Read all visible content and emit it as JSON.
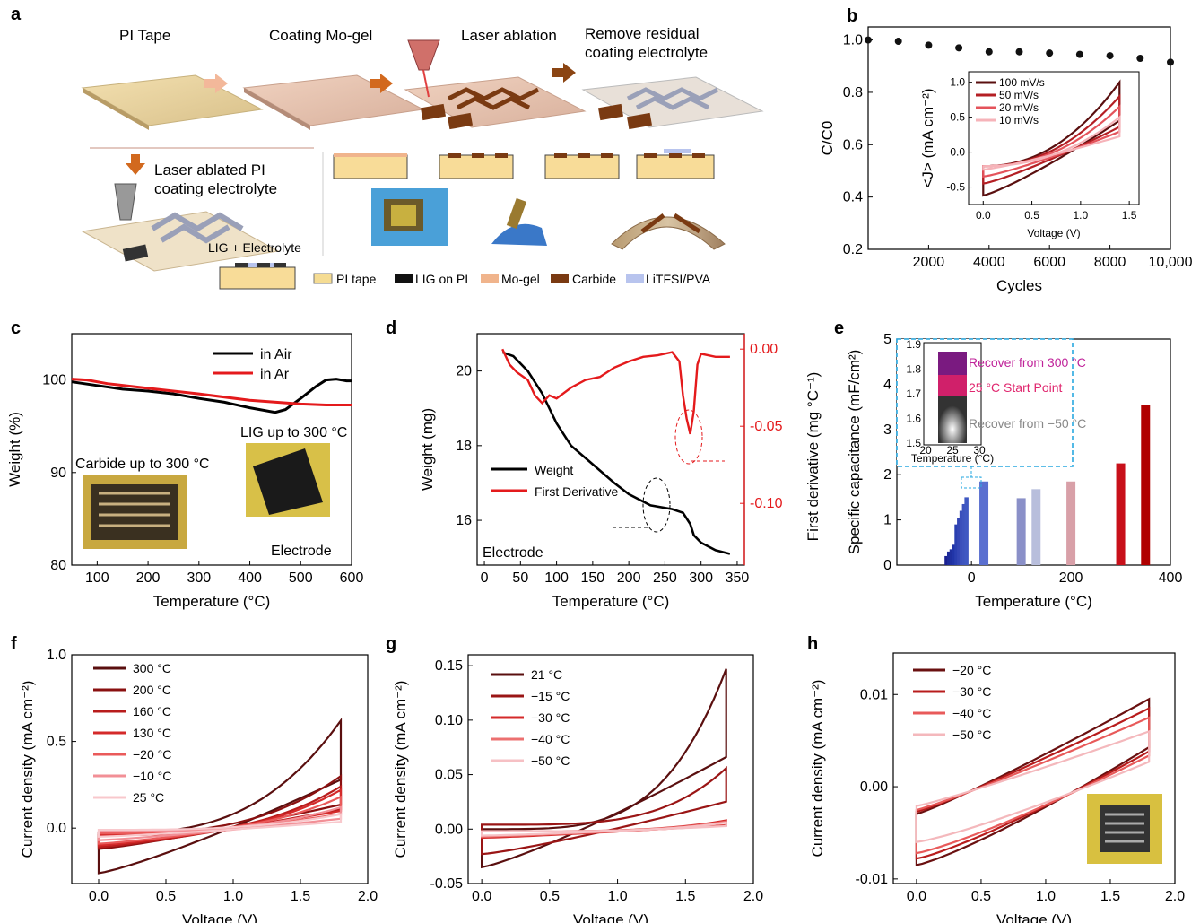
{
  "panel_a": {
    "label": "a",
    "steps": [
      "PI Tape",
      "Coating Mo-gel",
      "Laser ablation",
      "Remove residual coating electrolyte"
    ],
    "laser_ablated_note": "Laser ablated PI coating electrolyte",
    "lig_electrolyte": "LIG + Electrolyte",
    "legend": [
      {
        "label": "PI tape",
        "color": "#f5dc93"
      },
      {
        "label": "LIG on PI",
        "color": "#111111"
      },
      {
        "label": "Mo-gel",
        "color": "#f0b48c"
      },
      {
        "label": "Carbide",
        "color": "#7a3a12"
      },
      {
        "label": "LiTFSI/PVA",
        "color": "#b8c4ee"
      }
    ]
  },
  "chart_data": [
    {
      "panel": "b",
      "type": "scatter",
      "ylabel": "C/C0",
      "xlabel": "Cycles",
      "xlim": [
        0,
        10000
      ],
      "ylim": [
        0.2,
        1.0
      ],
      "xticks": [
        "2000",
        "4000",
        "6000",
        "8000",
        "10,000"
      ],
      "yticks": [
        "0.2",
        "0.4",
        "0.6",
        "0.8",
        "1.0"
      ],
      "x": [
        0,
        1000,
        2000,
        3000,
        4000,
        5000,
        6000,
        7000,
        8000,
        9000,
        10000
      ],
      "y": [
        1.0,
        0.995,
        0.98,
        0.97,
        0.955,
        0.955,
        0.95,
        0.945,
        0.94,
        0.93,
        0.915
      ],
      "inset": {
        "type": "line",
        "xlabel": "Voltage (V)",
        "ylabel": "<J> (mA cm⁻²)",
        "xticks": [
          "0.0",
          "0.5",
          "1.0",
          "1.5"
        ],
        "yticks": [
          "-0.5",
          "0.0",
          "0.5",
          "1.0"
        ],
        "series": [
          {
            "name": "100 mV/s",
            "color": "#5a0f0f",
            "peak": 1.0,
            "low": -0.62
          },
          {
            "name": "50 mV/s",
            "color": "#b41f24",
            "peak": 0.8,
            "low": -0.45
          },
          {
            "name": "20 mV/s",
            "color": "#e4535b",
            "peak": 0.65,
            "low": -0.35
          },
          {
            "name": "10 mV/s",
            "color": "#f6b3b9",
            "peak": 0.5,
            "low": -0.25
          }
        ]
      }
    },
    {
      "panel": "c",
      "type": "line",
      "xlabel": "Temperature (°C)",
      "ylabel": "Weight (%)",
      "xlim": [
        50,
        600
      ],
      "ylim": [
        80,
        105
      ],
      "xticks": [
        "100",
        "200",
        "300",
        "400",
        "500",
        "600"
      ],
      "yticks": [
        "80",
        "90",
        "100"
      ],
      "series": [
        {
          "name": "in Air",
          "color": "#000000",
          "x": [
            50,
            100,
            150,
            200,
            250,
            300,
            350,
            400,
            450,
            470,
            500,
            530,
            550,
            570,
            590,
            600
          ],
          "y": [
            99.8,
            99.4,
            99.0,
            98.8,
            98.5,
            98.0,
            97.6,
            97.0,
            96.5,
            96.8,
            98.0,
            99.3,
            100.0,
            100.1,
            99.9,
            99.9
          ]
        },
        {
          "name": "in Ar",
          "color": "#e41a1c",
          "x": [
            50,
            80,
            120,
            200,
            300,
            400,
            500,
            550,
            600
          ],
          "y": [
            100.1,
            100.0,
            99.6,
            99.1,
            98.5,
            97.8,
            97.4,
            97.3,
            97.3
          ]
        }
      ],
      "annotations": [
        "Carbide up to 300 °C",
        "LIG up to 300 °C",
        "Electrode"
      ]
    },
    {
      "panel": "d",
      "type": "line",
      "xlabel": "Temperature (°C)",
      "ylabel": "Weight (mg)",
      "ylabel_right": "First derivative (mg °C⁻¹)",
      "xlim": [
        -10,
        360
      ],
      "ylim": [
        14.8,
        21.0
      ],
      "ylim_right": [
        -0.14,
        0.01
      ],
      "xticks": [
        "0",
        "50",
        "100",
        "150",
        "200",
        "250",
        "300",
        "350"
      ],
      "yticks": [
        "16",
        "18",
        "20"
      ],
      "yticks_right": [
        "0.00",
        "-0.05",
        "-0.10"
      ],
      "series": [
        {
          "name": "Weight",
          "color": "#000000",
          "x": [
            25,
            40,
            60,
            80,
            100,
            120,
            150,
            180,
            200,
            230,
            260,
            275,
            285,
            290,
            300,
            320,
            340
          ],
          "y": [
            20.5,
            20.4,
            20.0,
            19.4,
            18.6,
            18.0,
            17.5,
            17.0,
            16.7,
            16.4,
            16.3,
            16.2,
            15.9,
            15.6,
            15.4,
            15.2,
            15.1
          ]
        },
        {
          "name": "First Derivative",
          "color": "#e41a1c",
          "x": [
            25,
            35,
            45,
            60,
            70,
            80,
            90,
            100,
            120,
            140,
            160,
            180,
            200,
            220,
            240,
            260,
            270,
            275,
            280,
            285,
            290,
            295,
            300,
            320,
            340
          ],
          "y": [
            0.0,
            -0.01,
            -0.015,
            -0.02,
            -0.03,
            -0.035,
            -0.03,
            -0.032,
            -0.025,
            -0.02,
            -0.018,
            -0.012,
            -0.008,
            -0.005,
            -0.004,
            -0.002,
            -0.008,
            -0.03,
            -0.045,
            -0.055,
            -0.04,
            -0.01,
            -0.003,
            -0.005,
            -0.005
          ]
        }
      ],
      "annotations": [
        "Electrode"
      ]
    },
    {
      "panel": "e",
      "type": "bar",
      "xlabel": "Temperature (°C)",
      "ylabel": "Specific capacitance (mF/cm²)",
      "xlim": [
        -150,
        400
      ],
      "ylim": [
        0,
        5
      ],
      "xticks": [
        "0",
        "200",
        "400"
      ],
      "yticks": [
        "0",
        "1",
        "2",
        "3",
        "4",
        "5"
      ],
      "categories": [
        -50,
        -45,
        -40,
        -35,
        -30,
        -25,
        -20,
        -15,
        -10,
        25,
        100,
        130,
        200,
        300,
        350
      ],
      "values": [
        0.2,
        0.3,
        0.35,
        0.45,
        0.9,
        1.05,
        1.2,
        1.35,
        1.5,
        1.85,
        1.48,
        1.68,
        1.85,
        2.25,
        3.55
      ],
      "colors": [
        "#1a2090",
        "#1d2a9a",
        "#1f30a0",
        "#2135a8",
        "#2a3fb0",
        "#3346b5",
        "#3a4fba",
        "#3d54be",
        "#3f58c2",
        "#5a6fd0",
        "#8a90c8",
        "#b8bedc",
        "#d8a0a8",
        "#c8101a",
        "#b00000"
      ],
      "inset": {
        "xlabel": "Temperature (°C)",
        "xticks": [
          "20",
          "25",
          "30"
        ],
        "yticks": [
          "1.5",
          "1.6",
          "1.7",
          "1.8",
          "1.9"
        ],
        "labels": [
          {
            "text": "Recover from 300 °C",
            "color": "#c0239a"
          },
          {
            "text": "25 °C Start Point",
            "color": "#e0266e"
          },
          {
            "text": "Recover from −50 °C",
            "color": "#888888"
          }
        ]
      }
    },
    {
      "panel": "f",
      "type": "line",
      "xlabel": "Voltage (V)",
      "ylabel": "Current density (mA cm⁻²)",
      "xlim": [
        -0.15,
        2.0
      ],
      "ylim": [
        -0.32,
        1.0
      ],
      "xticks": [
        "0.0",
        "0.5",
        "1.0",
        "1.5",
        "2.0"
      ],
      "yticks": [
        "0.0",
        "0.5",
        "1.0"
      ],
      "series": [
        {
          "name": "300 °C",
          "color": "#5a0f0f",
          "peak": 0.62,
          "low": -0.26,
          "upper0": -0.03
        },
        {
          "name": "200 °C",
          "color": "#8a1010",
          "peak": 0.3,
          "low": -0.12,
          "upper0": -0.03
        },
        {
          "name": "160 °C",
          "color": "#b81c1c",
          "peak": 0.24,
          "low": -0.11,
          "upper0": -0.04
        },
        {
          "name": "130 °C",
          "color": "#d42a2a",
          "peak": 0.22,
          "low": -0.1,
          "upper0": -0.04
        },
        {
          "name": "−20 °C",
          "color": "#ea5a5a",
          "peak": 0.18,
          "low": -0.09,
          "upper0": -0.03
        },
        {
          "name": "−10 °C",
          "color": "#f28f96",
          "peak": 0.12,
          "low": -0.07,
          "upper0": -0.02
        },
        {
          "name": "25 °C",
          "color": "#f8c8cc",
          "peak": 0.08,
          "low": -0.05,
          "upper0": -0.01
        }
      ]
    },
    {
      "panel": "g",
      "type": "line",
      "xlabel": "Voltage (V)",
      "ylabel": "Current density (mA cm⁻²)",
      "xlim": [
        -0.1,
        2.0
      ],
      "ylim": [
        -0.05,
        0.16
      ],
      "xticks": [
        "0.0",
        "0.5",
        "1.0",
        "1.5",
        "2.0"
      ],
      "yticks": [
        "-0.05",
        "0.00",
        "0.05",
        "0.10",
        "0.15"
      ],
      "series": [
        {
          "name": "21 °C",
          "color": "#5a0f0f",
          "peak": 0.147,
          "low": -0.035,
          "upper0": 0.0
        },
        {
          "name": "−15 °C",
          "color": "#9a1515",
          "peak": 0.056,
          "low": -0.023,
          "upper0": 0.004
        },
        {
          "name": "−30 °C",
          "color": "#d42a2a",
          "peak": 0.008,
          "low": -0.008,
          "upper0": -0.002
        },
        {
          "name": "−40 °C",
          "color": "#ec7070",
          "peak": 0.007,
          "low": -0.007,
          "upper0": -0.002
        },
        {
          "name": "−50 °C",
          "color": "#f6c0c4",
          "peak": 0.006,
          "low": -0.006,
          "upper0": -0.002
        }
      ]
    },
    {
      "panel": "h",
      "type": "line",
      "xlabel": "Voltage (V)",
      "ylabel": "Current density (mA cm⁻²)",
      "xlim": [
        -0.2,
        2.0
      ],
      "ylim": [
        -0.0105,
        0.0145
      ],
      "xticks": [
        "0.0",
        "0.5",
        "1.0",
        "1.5",
        "2.0"
      ],
      "yticks": [
        "-0.01",
        "0.00",
        "0.01"
      ],
      "series": [
        {
          "name": "−20 °C",
          "color": "#6a1010",
          "peak": 0.0095,
          "low": -0.0085
        },
        {
          "name": "−30 °C",
          "color": "#b81c1c",
          "peak": 0.0085,
          "low": -0.0078
        },
        {
          "name": "−40 °C",
          "color": "#e85a5a",
          "peak": 0.0075,
          "low": -0.0072
        },
        {
          "name": "−50 °C",
          "color": "#f4b8bc",
          "peak": 0.006,
          "low": -0.006
        }
      ]
    }
  ],
  "panel_labels": {
    "b": "b",
    "c": "c",
    "d": "d",
    "e": "e",
    "f": "f",
    "g": "g",
    "h": "h"
  }
}
